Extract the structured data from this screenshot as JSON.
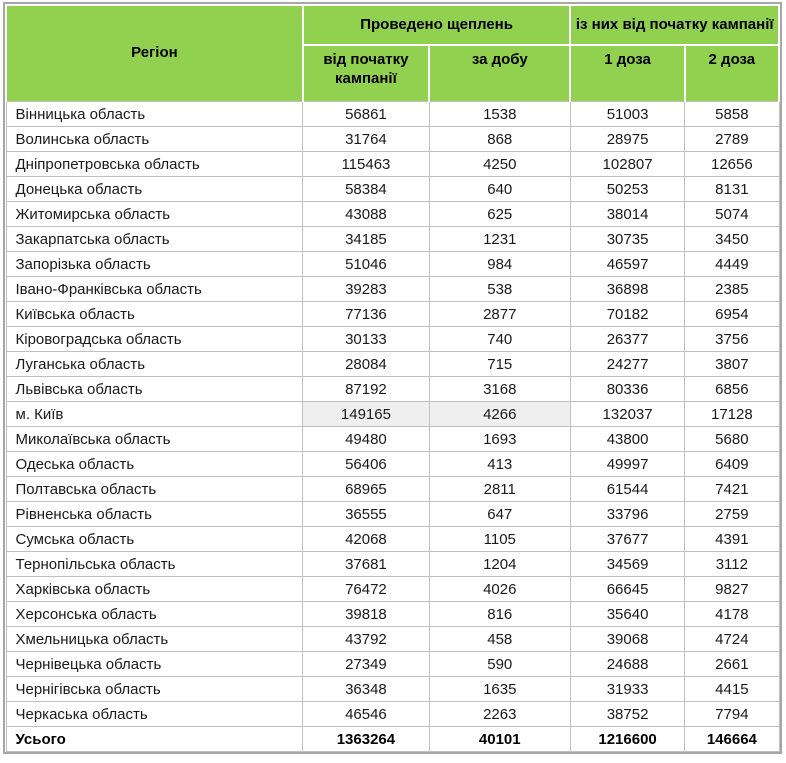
{
  "colors": {
    "header_bg": "#92D050",
    "grid": "#C0C0C0",
    "outer_border": "#A6A6A6",
    "highlight": "#EFEFEF"
  },
  "table": {
    "header": {
      "region": "Регіон",
      "group_vaccinations": "Проведено щеплень",
      "group_since_campaign": "із них від початку кампанії",
      "sub_since_campaign": "від початку кампанії",
      "sub_per_day": "за добу",
      "sub_dose1": "1 доза",
      "sub_dose2": "2 доза"
    },
    "rows": [
      {
        "region": "Вінницька область",
        "values": [
          "56861",
          "1538",
          "51003",
          "5858"
        ],
        "highlight": false
      },
      {
        "region": "Волинська область",
        "values": [
          "31764",
          "868",
          "28975",
          "2789"
        ],
        "highlight": false
      },
      {
        "region": "Дніпропетровська область",
        "values": [
          "115463",
          "4250",
          "102807",
          "12656"
        ],
        "highlight": false
      },
      {
        "region": "Донецька область",
        "values": [
          "58384",
          "640",
          "50253",
          "8131"
        ],
        "highlight": false
      },
      {
        "region": "Житомирська область",
        "values": [
          "43088",
          "625",
          "38014",
          "5074"
        ],
        "highlight": false
      },
      {
        "region": "Закарпатська область",
        "values": [
          "34185",
          "1231",
          "30735",
          "3450"
        ],
        "highlight": false
      },
      {
        "region": "Запорізька область",
        "values": [
          "51046",
          "984",
          "46597",
          "4449"
        ],
        "highlight": false
      },
      {
        "region": "Івано-Франківська область",
        "values": [
          "39283",
          "538",
          "36898",
          "2385"
        ],
        "highlight": false
      },
      {
        "region": "Київська область",
        "values": [
          "77136",
          "2877",
          "70182",
          "6954"
        ],
        "highlight": false
      },
      {
        "region": "Кіровоградська область",
        "values": [
          "30133",
          "740",
          "26377",
          "3756"
        ],
        "highlight": false
      },
      {
        "region": "Луганська область",
        "values": [
          "28084",
          "715",
          "24277",
          "3807"
        ],
        "highlight": false
      },
      {
        "region": "Львівська область",
        "values": [
          "87192",
          "3168",
          "80336",
          "6856"
        ],
        "highlight": false
      },
      {
        "region": "м. Київ",
        "values": [
          "149165",
          "4266",
          "132037",
          "17128"
        ],
        "highlight": true
      },
      {
        "region": "Миколаївська область",
        "values": [
          "49480",
          "1693",
          "43800",
          "5680"
        ],
        "highlight": false
      },
      {
        "region": "Одеська область",
        "values": [
          "56406",
          "413",
          "49997",
          "6409"
        ],
        "highlight": false
      },
      {
        "region": "Полтавська область",
        "values": [
          "68965",
          "2811",
          "61544",
          "7421"
        ],
        "highlight": false
      },
      {
        "region": "Рівненська область",
        "values": [
          "36555",
          "647",
          "33796",
          "2759"
        ],
        "highlight": false
      },
      {
        "region": "Сумська область",
        "values": [
          "42068",
          "1105",
          "37677",
          "4391"
        ],
        "highlight": false
      },
      {
        "region": "Тернопільська область",
        "values": [
          "37681",
          "1204",
          "34569",
          "3112"
        ],
        "highlight": false
      },
      {
        "region": "Харківська область",
        "values": [
          "76472",
          "4026",
          "66645",
          "9827"
        ],
        "highlight": false
      },
      {
        "region": "Херсонська область",
        "values": [
          "39818",
          "816",
          "35640",
          "4178"
        ],
        "highlight": false
      },
      {
        "region": "Хмельницька область",
        "values": [
          "43792",
          "458",
          "39068",
          "4724"
        ],
        "highlight": false
      },
      {
        "region": "Чернівецька область",
        "values": [
          "27349",
          "590",
          "24688",
          "2661"
        ],
        "highlight": false
      },
      {
        "region": "Чернігівська область",
        "values": [
          "36348",
          "1635",
          "31933",
          "4415"
        ],
        "highlight": false
      },
      {
        "region": "Черкаська область",
        "values": [
          "46546",
          "2263",
          "38752",
          "7794"
        ],
        "highlight": false
      }
    ],
    "total": {
      "label": "Усього",
      "values": [
        "1363264",
        "40101",
        "1216600",
        "146664"
      ]
    }
  }
}
